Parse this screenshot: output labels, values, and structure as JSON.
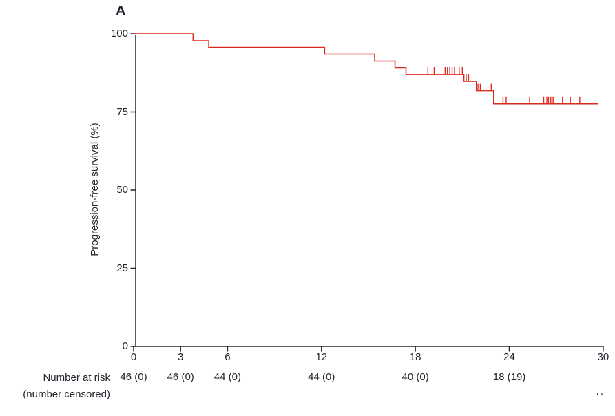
{
  "panel_label": "A",
  "colors": {
    "curve": "#dd2a1e",
    "axis": "#26242e",
    "text": "#26242e"
  },
  "footnote": "..",
  "chart_data": {
    "type": "line",
    "subtype": "kaplan-meier-step",
    "title": "",
    "xlabel": "",
    "ylabel": "Progression-free survival (%)",
    "xlim": [
      0,
      30
    ],
    "ylim": [
      0,
      100
    ],
    "xticks": [
      0,
      3,
      6,
      12,
      18,
      24,
      30
    ],
    "yticks": [
      0,
      25,
      50,
      75,
      100
    ],
    "grid": false,
    "legend": false,
    "series": [
      {
        "name": "Progression-free survival",
        "color": "#dd2a1e",
        "steps": [
          {
            "t": 0,
            "s": 100
          },
          {
            "t": 3.8,
            "s": 97.8
          },
          {
            "t": 4.8,
            "s": 95.7
          },
          {
            "t": 12.2,
            "s": 93.5
          },
          {
            "t": 15.4,
            "s": 91.3
          },
          {
            "t": 16.7,
            "s": 89.1
          },
          {
            "t": 17.4,
            "s": 87.0
          },
          {
            "t": 21.1,
            "s": 84.8
          },
          {
            "t": 21.9,
            "s": 81.8
          },
          {
            "t": 23.0,
            "s": 77.6
          }
        ],
        "end_t": 29.7,
        "censor_marks": [
          {
            "t": 18.8,
            "s": 87.0
          },
          {
            "t": 19.2,
            "s": 87.0
          },
          {
            "t": 19.9,
            "s": 87.0
          },
          {
            "t": 20.05,
            "s": 87.0
          },
          {
            "t": 20.2,
            "s": 87.0
          },
          {
            "t": 20.35,
            "s": 87.0
          },
          {
            "t": 20.5,
            "s": 87.0
          },
          {
            "t": 20.8,
            "s": 87.0
          },
          {
            "t": 21.0,
            "s": 87.0
          },
          {
            "t": 21.25,
            "s": 84.8
          },
          {
            "t": 21.4,
            "s": 84.8
          },
          {
            "t": 22.0,
            "s": 81.8
          },
          {
            "t": 22.15,
            "s": 81.8
          },
          {
            "t": 22.85,
            "s": 81.8
          },
          {
            "t": 23.6,
            "s": 77.6
          },
          {
            "t": 23.8,
            "s": 77.6
          },
          {
            "t": 25.3,
            "s": 77.6
          },
          {
            "t": 26.2,
            "s": 77.6
          },
          {
            "t": 26.4,
            "s": 77.6
          },
          {
            "t": 26.5,
            "s": 77.6
          },
          {
            "t": 26.65,
            "s": 77.6
          },
          {
            "t": 26.8,
            "s": 77.6
          },
          {
            "t": 27.4,
            "s": 77.6
          },
          {
            "t": 27.9,
            "s": 77.6
          },
          {
            "t": 28.5,
            "s": 77.6
          }
        ]
      }
    ],
    "number_at_risk": {
      "label_line1": "Number at risk",
      "label_line2": "(number censored)",
      "times": [
        0,
        3,
        6,
        12,
        18,
        24
      ],
      "values": [
        "46 (0)",
        "46 (0)",
        "44 (0)",
        "44 (0)",
        "40 (0)",
        "18 (19)"
      ]
    }
  }
}
